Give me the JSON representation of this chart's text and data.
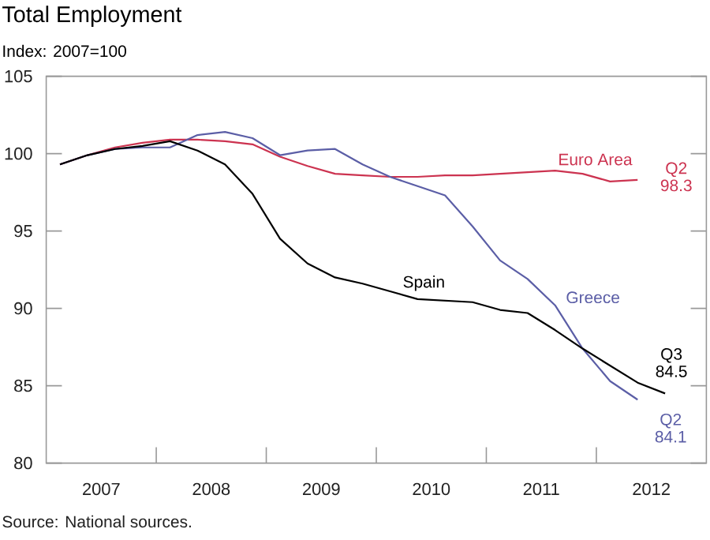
{
  "chart_data": {
    "type": "line",
    "title": "Total Employment",
    "ylabel": "Index: 2007=100",
    "x": [
      2007.125,
      2007.375,
      2007.625,
      2007.875,
      2008.125,
      2008.375,
      2008.625,
      2008.875,
      2009.125,
      2009.375,
      2009.625,
      2009.875,
      2010.125,
      2010.375,
      2010.625,
      2010.875,
      2011.125,
      2011.375,
      2011.625,
      2011.875,
      2012.125,
      2012.375,
      2012.625
    ],
    "series": [
      {
        "name": "Euro Area",
        "color": "#cc3350",
        "values": [
          99.3,
          99.9,
          100.4,
          100.7,
          100.9,
          100.9,
          100.8,
          100.6,
          99.8,
          99.2,
          98.7,
          98.6,
          98.5,
          98.5,
          98.6,
          98.6,
          98.7,
          98.8,
          98.9,
          98.7,
          98.2,
          98.3,
          null
        ],
        "value_labels": [
          null,
          null,
          null,
          null,
          null,
          null,
          null,
          null,
          null,
          null,
          null,
          null,
          null,
          null,
          null,
          null,
          null,
          null,
          null,
          null,
          null,
          "Q2 98.3",
          null
        ]
      },
      {
        "name": "Greece",
        "color": "#5b5ea6",
        "values": [
          99.3,
          99.9,
          100.3,
          100.4,
          100.4,
          101.2,
          101.4,
          101.0,
          99.9,
          100.2,
          100.3,
          99.3,
          98.5,
          97.9,
          97.3,
          95.3,
          93.1,
          91.9,
          90.2,
          87.4,
          85.3,
          84.1,
          null
        ],
        "value_labels": [
          null,
          null,
          null,
          null,
          null,
          null,
          null,
          null,
          null,
          null,
          null,
          null,
          null,
          null,
          null,
          null,
          null,
          null,
          null,
          null,
          null,
          "Q2 84.1",
          null
        ]
      },
      {
        "name": "Spain",
        "color": "#000000",
        "values": [
          99.3,
          99.9,
          100.3,
          100.5,
          100.8,
          100.2,
          99.3,
          97.4,
          94.5,
          92.9,
          92.0,
          91.6,
          91.1,
          90.6,
          90.5,
          90.4,
          89.9,
          89.7,
          88.6,
          87.4,
          86.3,
          85.2,
          84.5
        ],
        "value_labels": [
          null,
          null,
          null,
          null,
          null,
          null,
          null,
          null,
          null,
          null,
          null,
          null,
          null,
          null,
          null,
          null,
          null,
          null,
          null,
          null,
          null,
          null,
          "Q3 84.5"
        ]
      }
    ],
    "xlim": [
      2007,
      2013
    ],
    "xticks": [
      {
        "value": 2007.5,
        "label": "2007"
      },
      {
        "value": 2008,
        "label": null
      },
      {
        "value": 2008.5,
        "label": "2008"
      },
      {
        "value": 2009,
        "label": null
      },
      {
        "value": 2009.5,
        "label": "2009"
      },
      {
        "value": 2010,
        "label": null
      },
      {
        "value": 2010.5,
        "label": "2010"
      },
      {
        "value": 2011,
        "label": null
      },
      {
        "value": 2011.5,
        "label": "2011"
      },
      {
        "value": 2012,
        "label": null
      },
      {
        "value": 2012.5,
        "label": "2012"
      }
    ],
    "ylim": [
      80,
      105
    ],
    "yticks": [
      80,
      85,
      90,
      95,
      100,
      105
    ],
    "annotations": [
      "Source: National sources."
    ]
  }
}
